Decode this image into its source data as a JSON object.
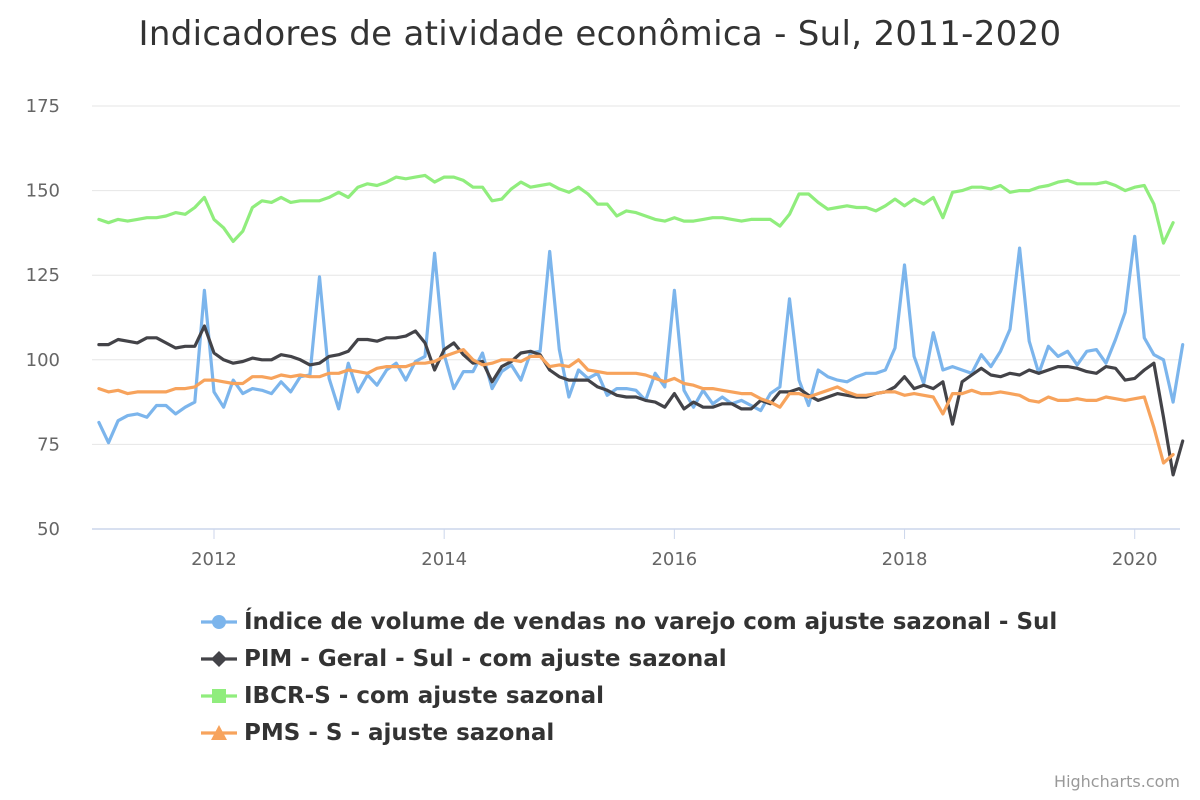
{
  "chart_data": {
    "type": "line",
    "title": "Indicadores de atividade econômica - Sul, 2011-2020",
    "xlabel": "",
    "ylabel": "",
    "x_start": "2011-01",
    "x_end": "2020-05",
    "frequency": "monthly",
    "xticks": [
      "2012",
      "2014",
      "2016",
      "2018",
      "2020"
    ],
    "yticks": [
      50,
      75,
      100,
      125,
      150,
      175
    ],
    "ylim": [
      50,
      175
    ],
    "grid": true,
    "legend_position": "bottom",
    "series": [
      {
        "name": "Índice de volume de vendas no varejo com ajuste sazonal - Sul",
        "color": "#7cb5ec",
        "marker": "circle",
        "values": [
          81.5,
          75.5,
          82,
          83.5,
          84,
          83,
          86.5,
          86.5,
          84,
          86,
          87.5,
          120.5,
          90.5,
          86,
          94,
          90,
          91.5,
          91,
          90,
          93.5,
          90.5,
          95,
          95.5,
          124.5,
          94.5,
          85.5,
          99,
          90.5,
          95.5,
          92.5,
          97,
          99,
          94,
          99.5,
          101,
          131.5,
          101.5,
          91.5,
          96.5,
          96.5,
          102,
          91.5,
          96.5,
          98.5,
          94,
          102,
          102.5,
          132,
          103,
          89,
          97,
          94.5,
          96,
          89.5,
          91.5,
          91.5,
          91,
          88,
          96,
          92,
          120.5,
          91,
          86,
          91,
          87,
          89,
          87,
          88,
          86.5,
          85,
          90,
          92,
          118,
          94,
          86.5,
          97,
          95,
          94,
          93.5,
          95,
          96,
          96,
          97,
          103.5,
          128,
          101,
          93,
          108,
          97,
          98,
          97,
          96,
          101.5,
          98,
          102.5,
          109,
          133,
          105.5,
          96,
          104,
          101,
          102.5,
          98.5,
          102.5,
          103,
          99,
          106,
          114,
          136.5,
          106.5,
          101.5,
          100,
          87.5,
          104.5
        ]
      },
      {
        "name": "PIM - Geral - Sul - com ajuste sazonal",
        "color": "#434348",
        "marker": "diamond",
        "values": [
          104.5,
          104.5,
          106,
          105.5,
          105,
          106.5,
          106.5,
          105,
          103.5,
          104,
          104,
          110,
          102,
          100,
          99,
          99.5,
          100.5,
          100,
          100,
          101.5,
          101,
          100,
          98.5,
          99,
          101,
          101.5,
          102.5,
          106,
          106,
          105.5,
          106.5,
          106.5,
          107,
          108.5,
          105,
          97,
          103,
          105,
          101.5,
          99,
          99.5,
          93.5,
          98,
          99.5,
          102,
          102.5,
          101.5,
          97,
          95,
          94,
          94,
          94,
          92,
          91,
          89.5,
          89,
          89,
          88,
          87.5,
          86,
          90,
          85.5,
          87.5,
          86,
          86,
          87,
          87,
          85.5,
          85.5,
          88,
          87,
          90.5,
          90.5,
          91.5,
          89.5,
          88,
          89,
          90,
          89.5,
          89,
          89,
          90,
          90.5,
          92,
          95,
          91.5,
          92.5,
          91.5,
          93.5,
          81,
          93.5,
          95.5,
          97.5,
          95.5,
          95,
          96,
          95.5,
          97,
          96,
          97,
          98,
          98,
          97.5,
          96.5,
          96,
          98,
          97.5,
          94,
          94.5,
          97,
          99,
          83,
          66,
          76
        ]
      },
      {
        "name": "IBCR-S - com ajuste sazonal",
        "color": "#90ed7d",
        "marker": "square",
        "values": [
          141.5,
          140.5,
          141.5,
          141,
          141.5,
          142,
          142,
          142.5,
          143.5,
          143,
          145,
          148,
          141.5,
          139,
          135,
          138,
          145,
          147,
          146.5,
          148,
          146.5,
          147,
          147,
          147,
          148,
          149.5,
          148,
          151,
          152,
          151.5,
          152.5,
          154,
          153.5,
          154,
          154.5,
          152.5,
          154,
          154,
          153,
          151,
          151,
          147,
          147.5,
          150.5,
          152.5,
          151,
          151.5,
          152,
          150.5,
          149.5,
          151,
          149,
          146,
          146,
          142.5,
          144,
          143.5,
          142.5,
          141.5,
          141,
          142,
          141,
          141,
          141.5,
          142,
          142,
          141.5,
          141,
          141.5,
          141.5,
          141.5,
          139.5,
          143,
          149,
          149,
          146.5,
          144.5,
          145,
          145.5,
          145,
          145,
          144,
          145.5,
          147.5,
          145.5,
          147.5,
          146,
          148,
          142,
          149.5,
          150,
          151,
          151,
          150.5,
          151.5,
          149.5,
          150,
          150,
          151,
          151.5,
          152.5,
          153,
          152,
          152,
          152,
          152.5,
          151.5,
          150,
          151,
          151.5,
          146,
          134.5,
          140.5
        ]
      },
      {
        "name": "PMS - S - ajuste sazonal",
        "color": "#f7a35c",
        "marker": "triangle",
        "values": [
          91.5,
          90.5,
          91,
          90,
          90.5,
          90.5,
          90.5,
          90.5,
          91.5,
          91.5,
          92,
          94,
          94,
          93.5,
          93,
          93,
          95,
          95,
          94.5,
          95.5,
          95,
          95.5,
          95,
          95,
          96,
          96,
          97,
          96.5,
          96,
          97.5,
          98,
          98,
          98,
          99,
          99,
          99.5,
          101,
          102,
          103,
          100,
          98.5,
          99,
          100,
          100,
          99.5,
          101,
          101,
          98,
          98.5,
          98,
          100,
          97,
          96.5,
          96,
          96,
          96,
          96,
          95.5,
          94.5,
          93.5,
          94.5,
          93,
          92.5,
          91.5,
          91.5,
          91,
          90.5,
          90,
          90,
          88.5,
          87.5,
          86,
          90,
          90,
          89,
          90,
          91,
          92,
          90.5,
          89.5,
          89.5,
          90,
          90.5,
          90.5,
          89.5,
          90,
          89.5,
          89,
          84,
          90,
          90,
          91,
          90,
          90,
          90.5,
          90,
          89.5,
          88,
          87.5,
          89,
          88,
          88,
          88.5,
          88,
          88,
          89,
          88.5,
          88,
          88.5,
          89,
          80,
          69.5,
          72
        ]
      }
    ]
  },
  "credits": "Highcharts.com"
}
